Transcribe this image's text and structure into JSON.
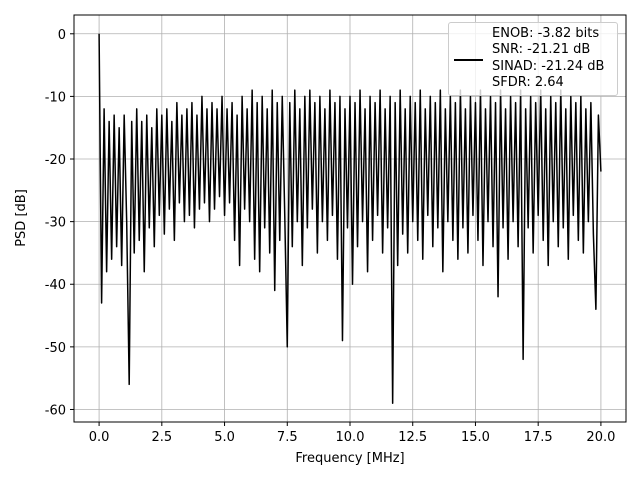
{
  "chart_data": {
    "type": "line",
    "xlabel": "Frequency [MHz]",
    "ylabel": "PSD [dB]",
    "xlim": [
      -1,
      21
    ],
    "ylim": [
      -62,
      3
    ],
    "xticks": [
      {
        "value": 0,
        "label": "0.0"
      },
      {
        "value": 2.5,
        "label": "2.5"
      },
      {
        "value": 5,
        "label": "5.0"
      },
      {
        "value": 7.5,
        "label": "7.5"
      },
      {
        "value": 10,
        "label": "10.0"
      },
      {
        "value": 12.5,
        "label": "12.5"
      },
      {
        "value": 15,
        "label": "15.0"
      },
      {
        "value": 17.5,
        "label": "17.5"
      },
      {
        "value": 20,
        "label": "20.0"
      }
    ],
    "yticks": [
      0,
      -10,
      -20,
      -30,
      -40,
      -50,
      -60
    ],
    "grid": true,
    "legend": "upper right",
    "x": [
      0,
      0.1,
      0.2,
      0.3,
      0.4,
      0.5,
      0.6,
      0.7,
      0.8,
      0.9,
      1,
      1.1,
      1.2,
      1.3,
      1.4,
      1.5,
      1.6,
      1.7,
      1.8,
      1.9,
      2,
      2.1,
      2.2,
      2.3,
      2.4,
      2.5,
      2.6,
      2.7,
      2.8,
      2.9,
      3,
      3.1,
      3.2,
      3.3,
      3.4,
      3.5,
      3.6,
      3.7,
      3.8,
      3.9,
      4,
      4.1,
      4.2,
      4.3,
      4.4,
      4.5,
      4.6,
      4.7,
      4.8,
      4.9,
      5,
      5.1,
      5.2,
      5.3,
      5.4,
      5.5,
      5.6,
      5.7,
      5.8,
      5.9,
      6,
      6.1,
      6.2,
      6.3,
      6.4,
      6.5,
      6.6,
      6.7,
      6.8,
      6.9,
      7,
      7.1,
      7.2,
      7.3,
      7.4,
      7.5,
      7.6,
      7.7,
      7.8,
      7.9,
      8,
      8.1,
      8.2,
      8.3,
      8.4,
      8.5,
      8.6,
      8.7,
      8.8,
      8.9,
      9,
      9.1,
      9.2,
      9.3,
      9.4,
      9.5,
      9.6,
      9.7,
      9.8,
      9.9,
      10,
      10.1,
      10.2,
      10.3,
      10.4,
      10.5,
      10.6,
      10.7,
      10.8,
      10.9,
      11,
      11.1,
      11.2,
      11.3,
      11.4,
      11.5,
      11.6,
      11.7,
      11.8,
      11.9,
      12,
      12.1,
      12.2,
      12.3,
      12.4,
      12.5,
      12.6,
      12.7,
      12.8,
      12.9,
      13,
      13.1,
      13.2,
      13.3,
      13.4,
      13.5,
      13.6,
      13.7,
      13.8,
      13.9,
      14,
      14.1,
      14.2,
      14.3,
      14.4,
      14.5,
      14.6,
      14.7,
      14.8,
      14.9,
      15,
      15.1,
      15.2,
      15.3,
      15.4,
      15.5,
      15.6,
      15.7,
      15.8,
      15.9,
      16,
      16.1,
      16.2,
      16.3,
      16.4,
      16.5,
      16.6,
      16.7,
      16.8,
      16.9,
      17,
      17.1,
      17.2,
      17.3,
      17.4,
      17.5,
      17.6,
      17.7,
      17.8,
      17.9,
      18,
      18.1,
      18.2,
      18.3,
      18.4,
      18.5,
      18.6,
      18.7,
      18.8,
      18.9,
      19,
      19.1,
      19.2,
      19.3,
      19.4,
      19.5,
      19.6,
      19.7,
      19.8,
      19.9,
      20
    ],
    "series": [
      {
        "name": "ENOB: -3.82 bits\nSNR: -21.21 dB\nSINAD: -21.24 dB\nSFDR: 2.64",
        "color": "#000000",
        "values": [
          0,
          -43,
          -12,
          -38,
          -14,
          -36,
          -13,
          -34,
          -15,
          -37,
          -13,
          -30,
          -56,
          -14,
          -35,
          -12,
          -33,
          -14,
          -38,
          -13,
          -31,
          -15,
          -34,
          -12,
          -29,
          -13,
          -32,
          -12,
          -28,
          -14,
          -33,
          -11,
          -27,
          -13,
          -30,
          -12,
          -29,
          -11,
          -31,
          -13,
          -28,
          -10,
          -27,
          -12,
          -30,
          -11,
          -28,
          -12,
          -26,
          -10,
          -29,
          -12,
          -27,
          -11,
          -33,
          -13,
          -37,
          -10,
          -28,
          -12,
          -30,
          -9,
          -36,
          -11,
          -38,
          -10,
          -31,
          -12,
          -35,
          -9,
          -41,
          -11,
          -33,
          -10,
          -29,
          -50,
          -11,
          -34,
          -9,
          -30,
          -12,
          -37,
          -10,
          -31,
          -9,
          -28,
          -11,
          -35,
          -10,
          -30,
          -12,
          -33,
          -9,
          -29,
          -11,
          -36,
          -10,
          -49,
          -12,
          -31,
          -10,
          -40,
          -11,
          -34,
          -9,
          -30,
          -12,
          -38,
          -10,
          -33,
          -11,
          -29,
          -9,
          -35,
          -12,
          -31,
          -10,
          -59,
          -11,
          -37,
          -9,
          -32,
          -12,
          -35,
          -10,
          -30,
          -11,
          -33,
          -9,
          -36,
          -12,
          -29,
          -10,
          -34,
          -11,
          -31,
          -9,
          -38,
          -12,
          -30,
          -10,
          -33,
          -11,
          -36,
          -9,
          -31,
          -12,
          -35,
          -10,
          -29,
          -11,
          -33,
          -9,
          -37,
          -12,
          -30,
          -10,
          -34,
          -11,
          -42,
          -9,
          -31,
          -12,
          -36,
          -10,
          -30,
          -11,
          -34,
          -9,
          -52,
          -12,
          -31,
          -10,
          -35,
          -11,
          -29,
          -9,
          -33,
          -12,
          -37,
          -10,
          -30,
          -11,
          -34,
          -9,
          -31,
          -12,
          -36,
          -10,
          -29,
          -11,
          -33,
          -10,
          -35,
          -12,
          -30,
          -11,
          -32,
          -44,
          -13,
          -22
        ]
      }
    ]
  }
}
